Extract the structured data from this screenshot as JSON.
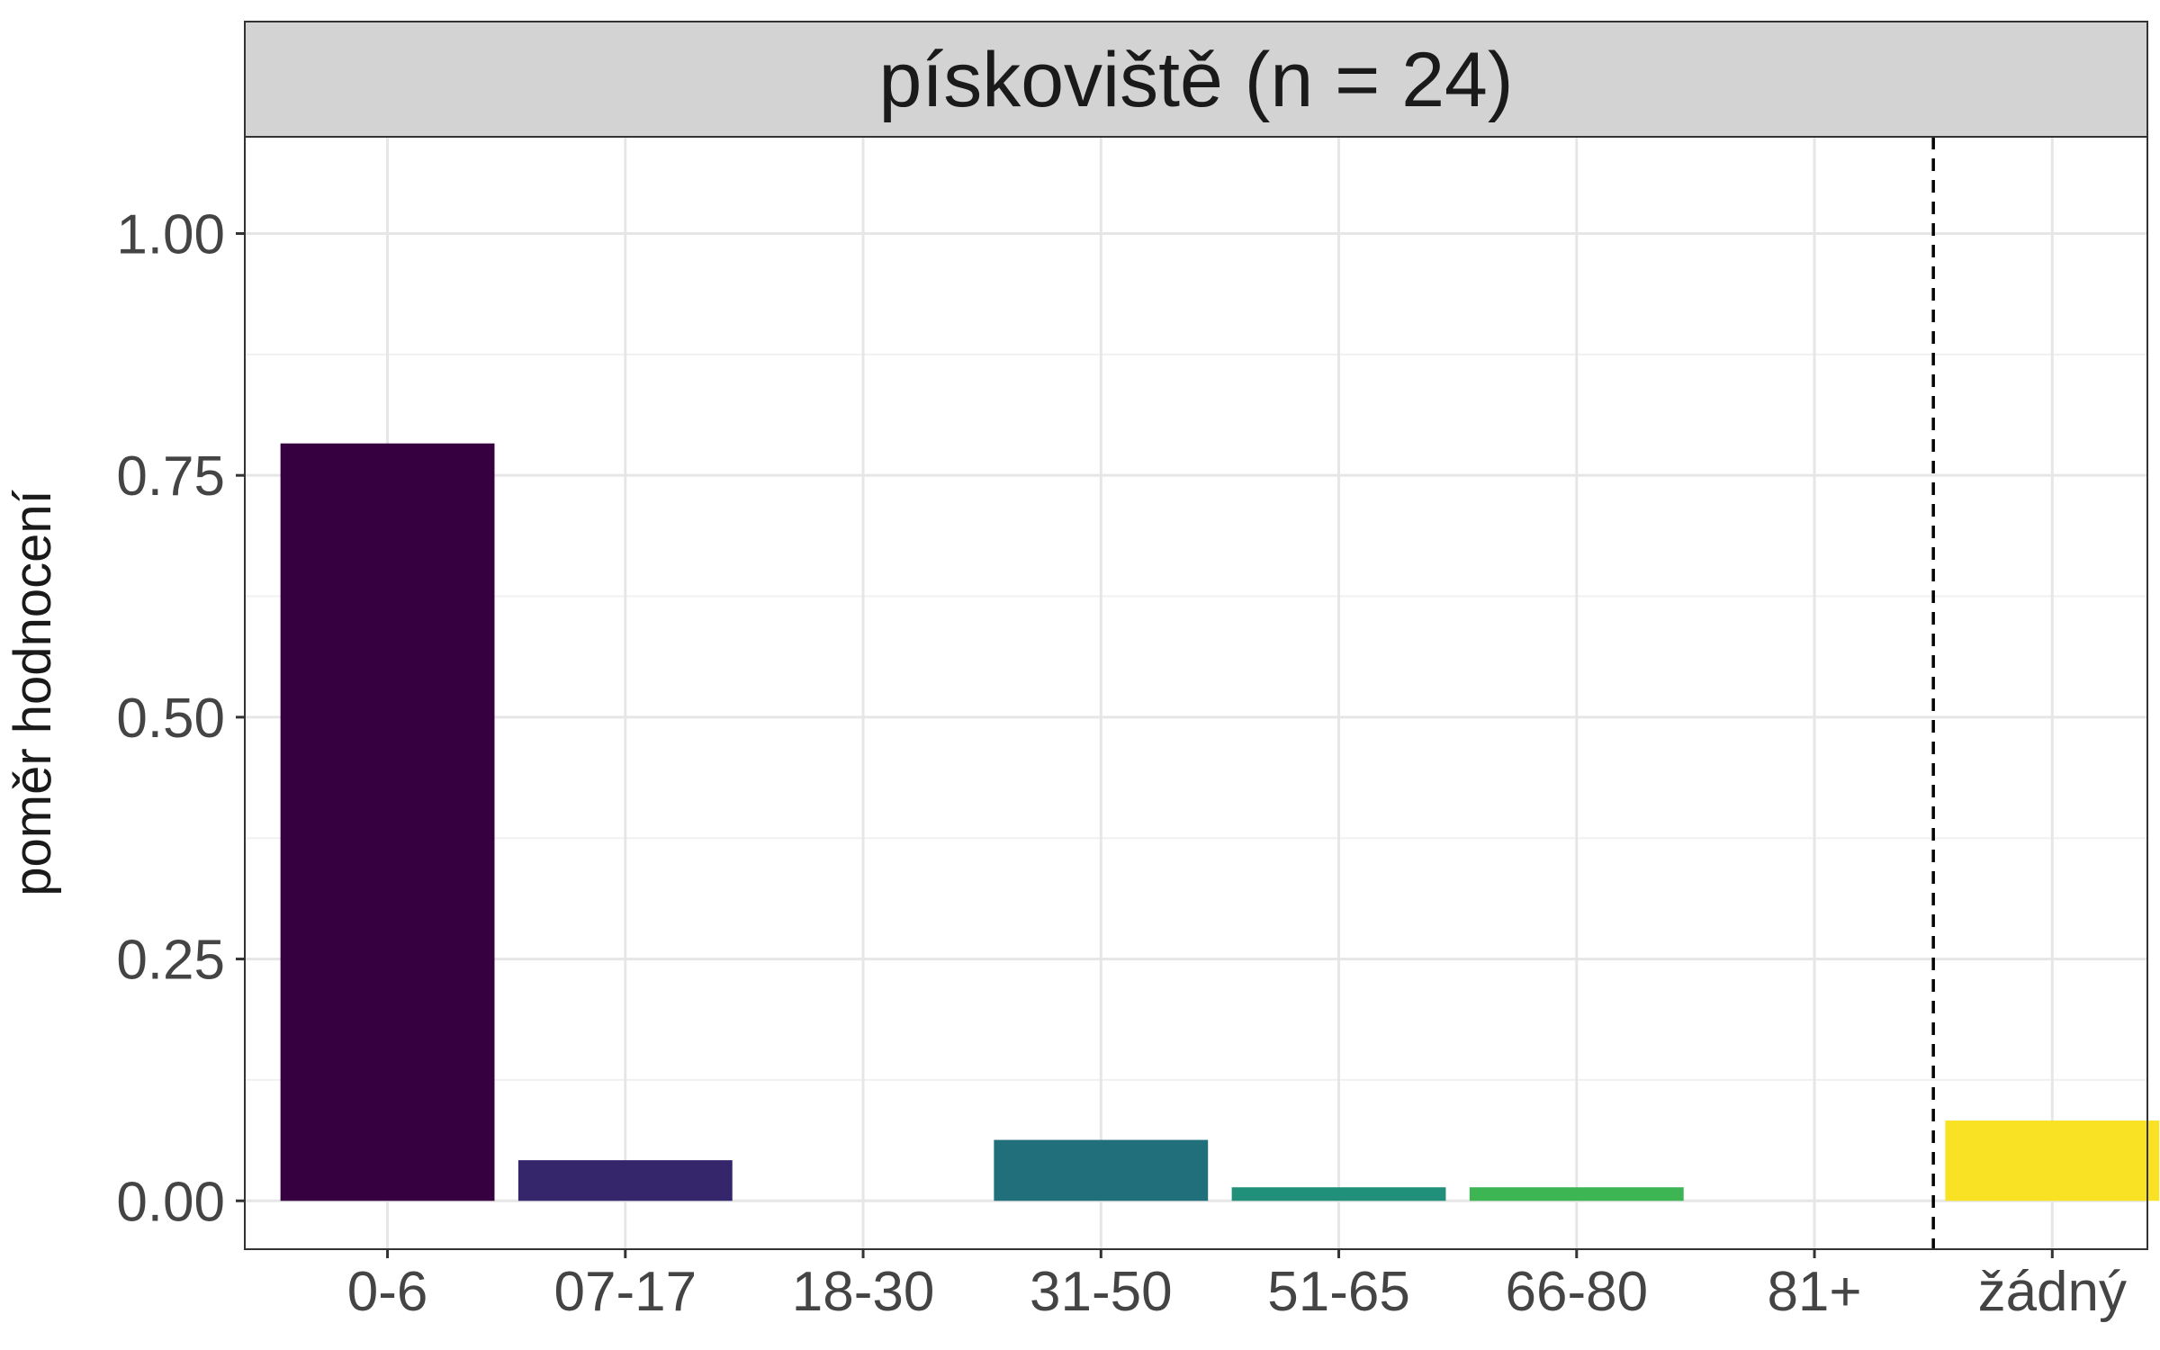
{
  "chart_data": {
    "type": "bar",
    "title": "pískoviště (n = 24)",
    "xlabel": "",
    "ylabel": "poměr hodnocení",
    "categories": [
      "0-6",
      "07-17",
      "18-30",
      "31-50",
      "51-65",
      "66-80",
      "81+",
      "žádný"
    ],
    "values": [
      0.783,
      0.042,
      0.0,
      0.063,
      0.014,
      0.014,
      0.0,
      0.083
    ],
    "colors": [
      "#360040",
      "#35256b",
      "#2c4a7e",
      "#216f7a",
      "#21907b",
      "#3cb552",
      "#8fd13c",
      "#f9e224"
    ],
    "ylim": [
      -0.05,
      1.1
    ],
    "yticks": [
      0.0,
      0.25,
      0.5,
      0.75,
      1.0
    ],
    "ytick_labels": [
      "0.00",
      "0.25",
      "0.50",
      "0.75",
      "1.00"
    ],
    "grid": true,
    "reference_line": {
      "between": [
        "81+",
        "žádný"
      ],
      "style": "dashed"
    }
  }
}
